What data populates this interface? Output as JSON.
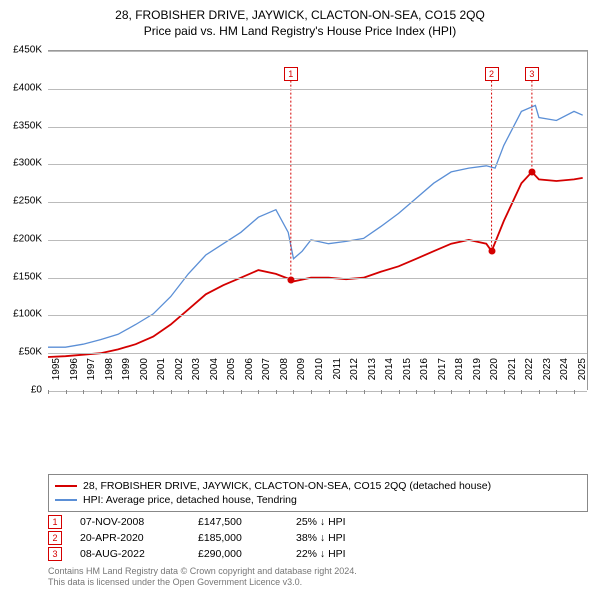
{
  "title": "28, FROBISHER DRIVE, JAYWICK, CLACTON-ON-SEA, CO15 2QQ",
  "subtitle": "Price paid vs. HM Land Registry's House Price Index (HPI)",
  "chart": {
    "type": "line",
    "background_color": "#ffffff",
    "grid_color": "#bbbbbb",
    "axis_color": "#888888",
    "label_fontsize": 10,
    "x_start": 1995,
    "x_end": 2025.8,
    "x_ticks": [
      1995,
      1996,
      1997,
      1998,
      1999,
      2000,
      2001,
      2002,
      2003,
      2004,
      2005,
      2006,
      2007,
      2008,
      2009,
      2010,
      2011,
      2012,
      2013,
      2014,
      2015,
      2016,
      2017,
      2018,
      2019,
      2020,
      2021,
      2022,
      2023,
      2024,
      2025
    ],
    "ylim": [
      0,
      450000
    ],
    "y_ticks": [
      0,
      50000,
      100000,
      150000,
      200000,
      250000,
      300000,
      350000,
      400000,
      450000
    ],
    "y_tick_labels": [
      "£0",
      "£50K",
      "£100K",
      "£150K",
      "£200K",
      "£250K",
      "£300K",
      "£350K",
      "£400K",
      "£450K"
    ],
    "series": [
      {
        "name": "property",
        "color": "#d40000",
        "width": 1.8,
        "points": [
          [
            1995,
            45000
          ],
          [
            1996,
            46000
          ],
          [
            1997,
            48000
          ],
          [
            1998,
            50000
          ],
          [
            1999,
            55000
          ],
          [
            2000,
            62000
          ],
          [
            2001,
            72000
          ],
          [
            2002,
            88000
          ],
          [
            2003,
            108000
          ],
          [
            2004,
            128000
          ],
          [
            2005,
            140000
          ],
          [
            2006,
            150000
          ],
          [
            2007,
            160000
          ],
          [
            2008,
            155000
          ],
          [
            2008.85,
            147500
          ],
          [
            2009,
            145000
          ],
          [
            2010,
            150000
          ],
          [
            2011,
            150000
          ],
          [
            2012,
            148000
          ],
          [
            2013,
            150000
          ],
          [
            2014,
            158000
          ],
          [
            2015,
            165000
          ],
          [
            2016,
            175000
          ],
          [
            2017,
            185000
          ],
          [
            2018,
            195000
          ],
          [
            2019,
            200000
          ],
          [
            2020,
            195000
          ],
          [
            2020.3,
            185000
          ],
          [
            2021,
            225000
          ],
          [
            2022,
            275000
          ],
          [
            2022.6,
            290000
          ],
          [
            2023,
            280000
          ],
          [
            2024,
            278000
          ],
          [
            2025,
            280000
          ],
          [
            2025.5,
            282000
          ]
        ]
      },
      {
        "name": "hpi",
        "color": "#5b8fd6",
        "width": 1.3,
        "points": [
          [
            1995,
            58000
          ],
          [
            1996,
            58000
          ],
          [
            1997,
            62000
          ],
          [
            1998,
            68000
          ],
          [
            1999,
            75000
          ],
          [
            2000,
            88000
          ],
          [
            2001,
            102000
          ],
          [
            2002,
            125000
          ],
          [
            2003,
            155000
          ],
          [
            2004,
            180000
          ],
          [
            2005,
            195000
          ],
          [
            2006,
            210000
          ],
          [
            2007,
            230000
          ],
          [
            2008,
            240000
          ],
          [
            2008.7,
            210000
          ],
          [
            2009,
            175000
          ],
          [
            2009.5,
            185000
          ],
          [
            2010,
            200000
          ],
          [
            2011,
            195000
          ],
          [
            2012,
            198000
          ],
          [
            2013,
            202000
          ],
          [
            2014,
            218000
          ],
          [
            2015,
            235000
          ],
          [
            2016,
            255000
          ],
          [
            2017,
            275000
          ],
          [
            2018,
            290000
          ],
          [
            2019,
            295000
          ],
          [
            2020,
            298000
          ],
          [
            2020.5,
            295000
          ],
          [
            2021,
            325000
          ],
          [
            2022,
            370000
          ],
          [
            2022.8,
            378000
          ],
          [
            2023,
            362000
          ],
          [
            2024,
            358000
          ],
          [
            2025,
            370000
          ],
          [
            2025.5,
            365000
          ]
        ]
      }
    ],
    "markers": [
      {
        "n": "1",
        "x": 2008.85,
        "y": 147500,
        "box_y": 420000,
        "color": "#d40000"
      },
      {
        "n": "2",
        "x": 2020.3,
        "y": 185000,
        "box_y": 420000,
        "color": "#d40000"
      },
      {
        "n": "3",
        "x": 2022.6,
        "y": 290000,
        "box_y": 420000,
        "color": "#d40000"
      }
    ]
  },
  "legend": {
    "items": [
      {
        "color": "#d40000",
        "width": 2,
        "label": "28, FROBISHER DRIVE, JAYWICK, CLACTON-ON-SEA, CO15 2QQ (detached house)"
      },
      {
        "color": "#5b8fd6",
        "width": 1.3,
        "label": "HPI: Average price, detached house, Tendring"
      }
    ]
  },
  "events": [
    {
      "n": "1",
      "date": "07-NOV-2008",
      "price": "£147,500",
      "diff": "25% ↓ HPI"
    },
    {
      "n": "2",
      "date": "20-APR-2020",
      "price": "£185,000",
      "diff": "38% ↓ HPI"
    },
    {
      "n": "3",
      "date": "08-AUG-2022",
      "price": "£290,000",
      "diff": "22% ↓ HPI"
    }
  ],
  "attribution": {
    "line1": "Contains HM Land Registry data © Crown copyright and database right 2024.",
    "line2": "This data is licensed under the Open Government Licence v3.0."
  }
}
